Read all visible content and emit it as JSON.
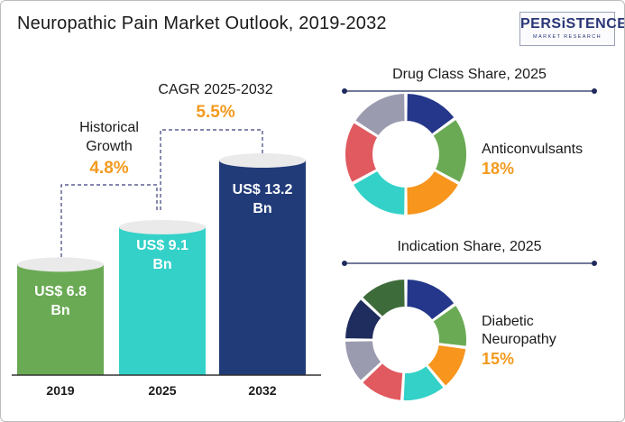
{
  "title": "Neuropathic Pain Market Outlook, 2019-2032",
  "logo": {
    "main": "PERSiSTENCE",
    "sub": "MARKET RESEARCH"
  },
  "bar_chart": {
    "annotations": {
      "historical": {
        "label_line1": "Historical",
        "label_line2": "Growth",
        "value": "4.8%"
      },
      "cagr": {
        "label": "CAGR 2025-2032",
        "value": "5.5%"
      }
    },
    "bar_labels": [
      {
        "line1": "US$ 6.8",
        "line2": "Bn"
      },
      {
        "line1": "US$ 9.1",
        "line2": "Bn"
      },
      {
        "line1": "US$ 13.2",
        "line2": "Bn"
      }
    ],
    "colors": [
      "#6aaa54",
      "#33d1c8",
      "#203b78"
    ]
  },
  "chart_data": [
    {
      "type": "bar",
      "title": "",
      "categories": [
        "2019",
        "2025",
        "2032"
      ],
      "values": [
        6.8,
        9.1,
        13.2
      ],
      "unit": "US$ Bn",
      "ylim": [
        0,
        14
      ]
    },
    {
      "type": "pie",
      "title": "Drug Class Share, 2025",
      "slices": [
        {
          "value": 15,
          "color": "#24378a"
        },
        {
          "value": 18,
          "color": "#6aaa54"
        },
        {
          "value": 17,
          "color": "#f7951d"
        },
        {
          "value": 17,
          "color": "#33d1c8"
        },
        {
          "value": 17,
          "color": "#e05a60"
        },
        {
          "value": 16,
          "color": "#9b9bb0"
        }
      ],
      "callout": {
        "label": "Anticonvulsants",
        "value": "18%"
      }
    },
    {
      "type": "pie",
      "title": "Indication Share, 2025",
      "slices": [
        {
          "value": 15,
          "color": "#24378a"
        },
        {
          "value": 12,
          "color": "#6aaa54"
        },
        {
          "value": 12,
          "color": "#f7951d"
        },
        {
          "value": 12,
          "color": "#33d1c8"
        },
        {
          "value": 12,
          "color": "#e05a60"
        },
        {
          "value": 12,
          "color": "#9b9bb0"
        },
        {
          "value": 12,
          "color": "#1f2c5e"
        },
        {
          "value": 13,
          "color": "#3e6b3a"
        }
      ],
      "callout": {
        "label_line1": "Diabetic",
        "label_line2": "Neuropathy",
        "value": "15%"
      }
    }
  ]
}
